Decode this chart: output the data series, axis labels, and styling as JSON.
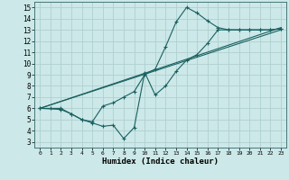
{
  "xlabel": "Humidex (Indice chaleur)",
  "bg_color": "#cce8e8",
  "grid_color": "#b0d0d0",
  "line_color": "#1a6060",
  "xlim": [
    -0.5,
    23.5
  ],
  "ylim": [
    2.5,
    15.5
  ],
  "xticks": [
    0,
    1,
    2,
    3,
    4,
    5,
    6,
    7,
    8,
    9,
    10,
    11,
    12,
    13,
    14,
    15,
    16,
    17,
    18,
    19,
    20,
    21,
    22,
    23
  ],
  "yticks": [
    3,
    4,
    5,
    6,
    7,
    8,
    9,
    10,
    11,
    12,
    13,
    14,
    15
  ],
  "series1_x": [
    0,
    1,
    2,
    3,
    4,
    5,
    6,
    7,
    8,
    9,
    10,
    11,
    12,
    13,
    14,
    15,
    16,
    17,
    18,
    19,
    20,
    21,
    22,
    23
  ],
  "series1_y": [
    6,
    6,
    6,
    5.5,
    5,
    4.8,
    6.2,
    6.5,
    7.0,
    7.5,
    9.0,
    9.5,
    11.5,
    13.7,
    15.0,
    14.5,
    13.8,
    13.2,
    13.0,
    13.0,
    13.0,
    13.0,
    13.0,
    13.1
  ],
  "series2_x": [
    0,
    2,
    3,
    4,
    5,
    6,
    7,
    8,
    9,
    10,
    11,
    12,
    13,
    14,
    15,
    16,
    17,
    18,
    19,
    20,
    21,
    22,
    23
  ],
  "series2_y": [
    6,
    5.9,
    5.5,
    5.0,
    4.7,
    4.4,
    4.5,
    3.3,
    4.3,
    9.2,
    7.2,
    8.0,
    9.3,
    10.3,
    10.8,
    11.8,
    13.0,
    13.0,
    13.0,
    13.0,
    13.0,
    13.0,
    13.1
  ],
  "series3_x": [
    0,
    23
  ],
  "series3_y": [
    6.0,
    13.0
  ],
  "series4_x": [
    0,
    23
  ],
  "series4_y": [
    6.0,
    13.2
  ]
}
